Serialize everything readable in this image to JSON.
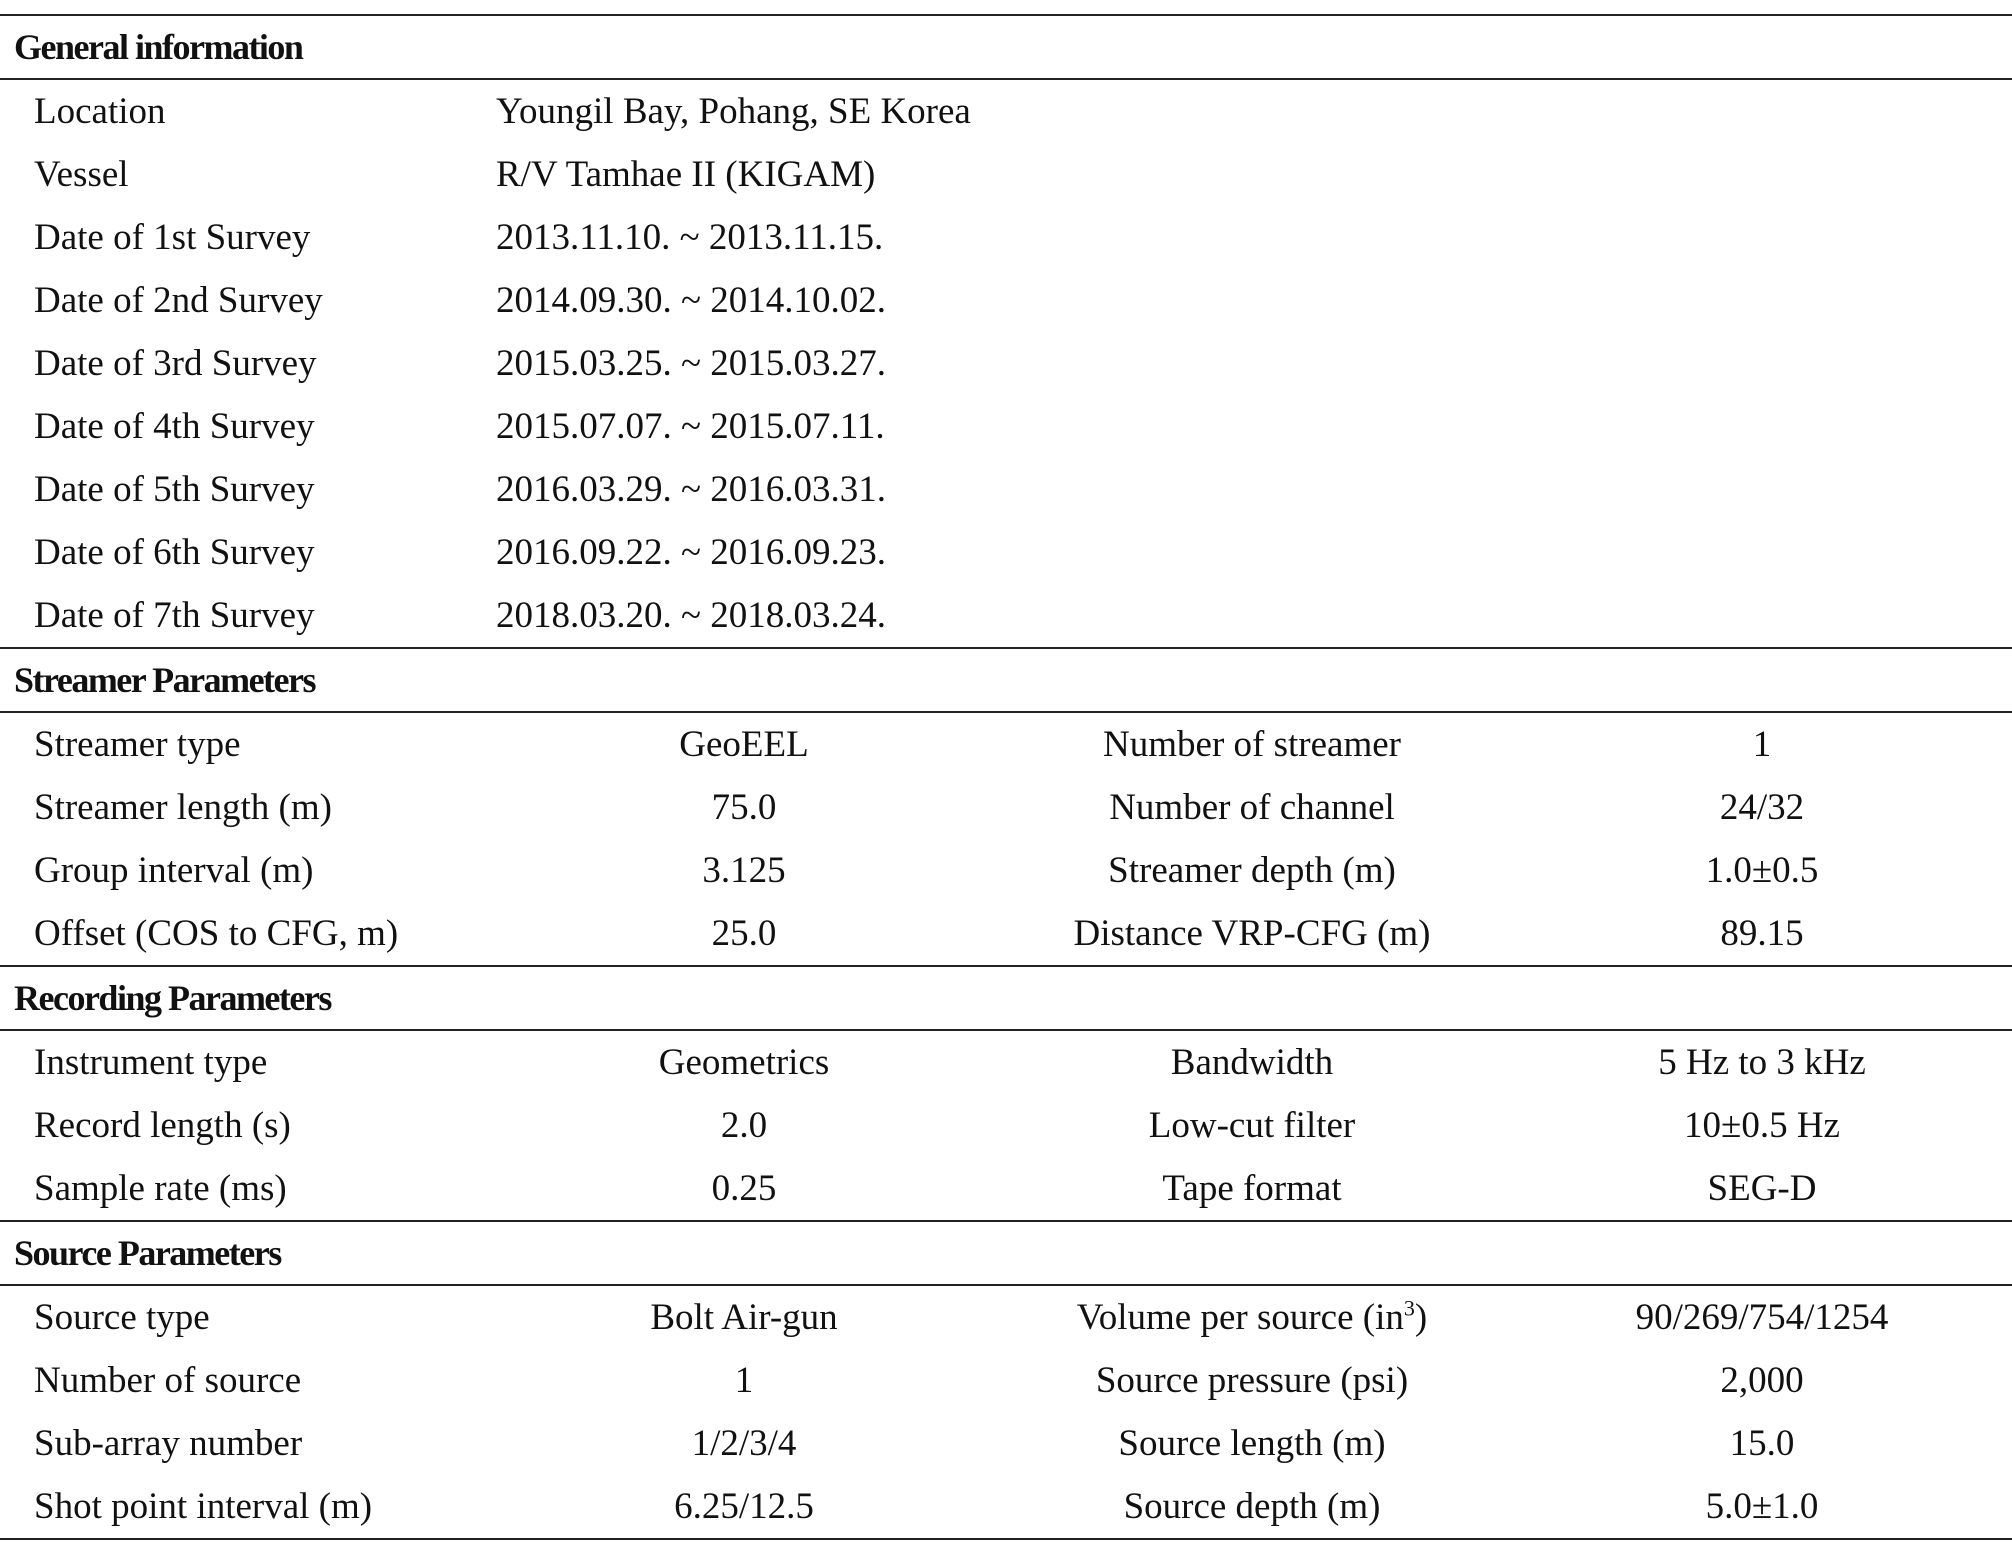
{
  "sections": {
    "general": {
      "title": "General information",
      "rows": [
        {
          "label": "Location",
          "value": "Youngil Bay, Pohang, SE Korea"
        },
        {
          "label": "Vessel",
          "value": "R/V Tamhae II (KIGAM)"
        },
        {
          "label": "Date of 1st Survey",
          "value": "2013.11.10. ~ 2013.11.15."
        },
        {
          "label": "Date of 2nd Survey",
          "value": "2014.09.30. ~ 2014.10.02."
        },
        {
          "label": "Date of 3rd Survey",
          "value": "2015.03.25. ~ 2015.03.27."
        },
        {
          "label": "Date of 4th Survey",
          "value": "2015.07.07. ~ 2015.07.11."
        },
        {
          "label": "Date of 5th Survey",
          "value": "2016.03.29. ~ 2016.03.31."
        },
        {
          "label": "Date of 6th Survey",
          "value": "2016.09.22. ~ 2016.09.23."
        },
        {
          "label": "Date of 7th Survey",
          "value": "2018.03.20. ~ 2018.03.24."
        }
      ]
    },
    "streamer": {
      "title": "Streamer Parameters",
      "rows": [
        {
          "label1": "Streamer type",
          "value1": "GeoEEL",
          "label2": "Number of streamer",
          "value2": "1"
        },
        {
          "label1": "Streamer length (m)",
          "value1": "75.0",
          "label2": "Number of channel",
          "value2": "24/32"
        },
        {
          "label1": "Group interval (m)",
          "value1": "3.125",
          "label2": "Streamer depth (m)",
          "value2": "1.0±0.5"
        },
        {
          "label1": "Offset (COS to CFG, m)",
          "value1": "25.0",
          "label2": "Distance VRP-CFG (m)",
          "value2": "89.15"
        }
      ]
    },
    "recording": {
      "title": "Recording Parameters",
      "rows": [
        {
          "label1": "Instrument type",
          "value1": "Geometrics",
          "label2": "Bandwidth",
          "value2": "5 Hz to 3 kHz"
        },
        {
          "label1": "Record length (s)",
          "value1": "2.0",
          "label2": "Low-cut filter",
          "value2": "10±0.5 Hz"
        },
        {
          "label1": "Sample rate (ms)",
          "value1": "0.25",
          "label2": "Tape format",
          "value2": "SEG-D"
        }
      ]
    },
    "source": {
      "title": "Source Parameters",
      "rows": [
        {
          "label1": "Source type",
          "value1": "Bolt Air-gun",
          "label2_main": "Volume per source (in",
          "label2_sup": "3",
          "label2_end": ")",
          "value2": "90/269/754/1254"
        },
        {
          "label1": "Number of source",
          "value1": "1",
          "label2": "Source pressure (psi)",
          "value2": "2,000"
        },
        {
          "label1": "Sub-array number",
          "value1": "1/2/3/4",
          "label2": "Source length (m)",
          "value2": "15.0"
        },
        {
          "label1": "Shot point interval (m)",
          "value1": "6.25/12.5",
          "label2": "Source depth (m)",
          "value2": "5.0±1.0"
        }
      ]
    }
  }
}
